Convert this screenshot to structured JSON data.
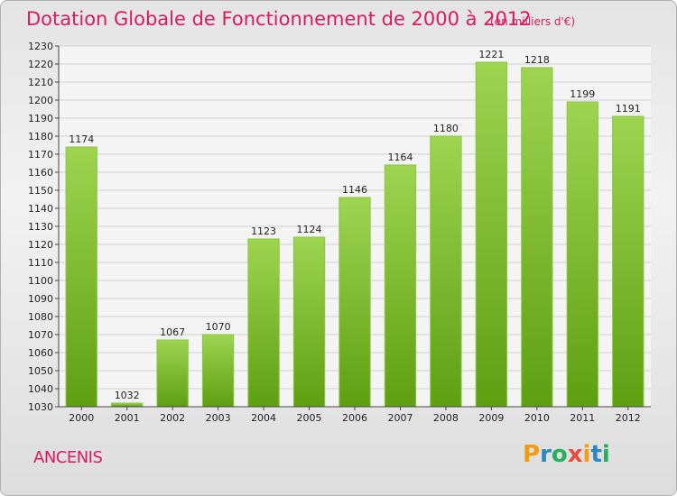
{
  "title": "Dotation Globale de Fonctionnement de 2000 à 2012",
  "subtitle": "(en milliers d'€)",
  "commune": "ANCENIS",
  "logo": {
    "letters": [
      "P",
      "r",
      "o",
      "x",
      "i",
      "t",
      "i"
    ],
    "colors": [
      "#f39c12",
      "#2e86c1",
      "#27ae60",
      "#e74c3c",
      "#f39c12",
      "#2e86c1",
      "#27ae60"
    ]
  },
  "chart_data": {
    "type": "bar",
    "categories": [
      "2000",
      "2001",
      "2002",
      "2003",
      "2004",
      "2005",
      "2006",
      "2007",
      "2008",
      "2009",
      "2010",
      "2011",
      "2012"
    ],
    "values": [
      1174,
      1032,
      1067,
      1070,
      1123,
      1124,
      1146,
      1164,
      1180,
      1221,
      1218,
      1199,
      1191
    ],
    "ylim": [
      1030,
      1230
    ],
    "ytick_step": 10,
    "grid": true,
    "bar_color": "#7cbf2e"
  }
}
